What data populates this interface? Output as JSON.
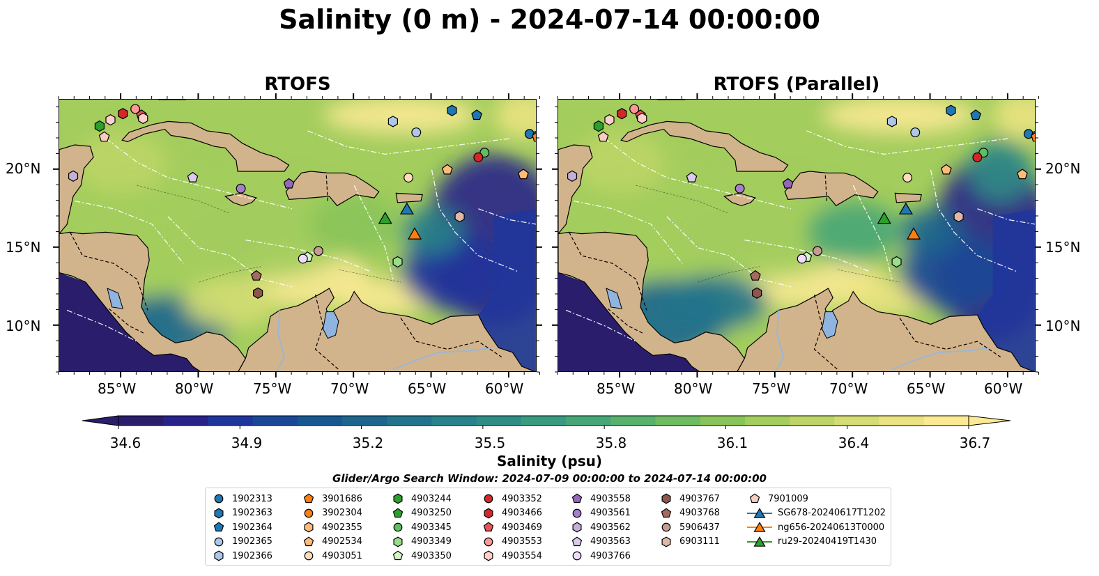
{
  "figure": {
    "suptitle": "Salinity (0 m) - 2024-07-14 00:00:00"
  },
  "panels": [
    {
      "title": "RTOFS"
    },
    {
      "title": "RTOFS (Parallel)"
    }
  ],
  "axes": {
    "lat_labels": [
      "20°N",
      "15°N",
      "10°N"
    ],
    "lon_labels": [
      "85°W",
      "80°W",
      "75°W",
      "70°W",
      "65°W",
      "60°W"
    ],
    "lon_range": [
      -89,
      -58.2
    ],
    "lat_range": [
      7,
      24.5
    ]
  },
  "colorbar": {
    "label": "Salinity (psu)",
    "ticks": [
      "34.6",
      "34.9",
      "35.2",
      "35.5",
      "35.8",
      "36.1",
      "36.4",
      "36.7"
    ],
    "range": [
      34.6,
      36.7
    ],
    "extend": "both",
    "colormap": "haline",
    "colors": [
      "#2a1d6b",
      "#28238a",
      "#20359b",
      "#1a4896",
      "#185891",
      "#1c668e",
      "#22738c",
      "#298189",
      "#308d86",
      "#3a9a80",
      "#47a677",
      "#58b16c",
      "#6fbb61",
      "#89c45a",
      "#a3cd5d",
      "#bdd566",
      "#d4dd73",
      "#ebe382",
      "#fbe994"
    ]
  },
  "search_window": "Glider/Argo Search Window: 2024-07-09 00:00:00 to 2024-07-14 00:00:00",
  "land_color": "#d2b48c",
  "lake_color": "#8fb4e0",
  "legend": {
    "columns": [
      [
        {
          "label": "1902313",
          "marker": "circle",
          "color": "#1f77b4"
        },
        {
          "label": "1902363",
          "marker": "hexagon",
          "color": "#1f77b4"
        },
        {
          "label": "1902364",
          "marker": "pentagon",
          "color": "#1f77b4"
        },
        {
          "label": "1902365",
          "marker": "circle",
          "color": "#aec7e8"
        },
        {
          "label": "1902366",
          "marker": "hexagon",
          "color": "#aec7e8"
        }
      ],
      [
        {
          "label": "3901686",
          "marker": "pentagon",
          "color": "#ff7f0e"
        },
        {
          "label": "3902304",
          "marker": "circle",
          "color": "#ff7f0e"
        },
        {
          "label": "4902355",
          "marker": "hexagon",
          "color": "#ffbb78"
        },
        {
          "label": "4902534",
          "marker": "pentagon",
          "color": "#ffbb78"
        },
        {
          "label": "4903051",
          "marker": "circle",
          "color": "#ffdcbb"
        }
      ],
      [
        {
          "label": "4903244",
          "marker": "hexagon",
          "color": "#2ca02c"
        },
        {
          "label": "4903250",
          "marker": "pentagon",
          "color": "#2ca02c"
        },
        {
          "label": "4903345",
          "marker": "circle",
          "color": "#5fbf5f"
        },
        {
          "label": "4903349",
          "marker": "hexagon",
          "color": "#98df8a"
        },
        {
          "label": "4903350",
          "marker": "pentagon",
          "color": "#d4f5cc"
        }
      ],
      [
        {
          "label": "4903352",
          "marker": "circle",
          "color": "#d62728"
        },
        {
          "label": "4903466",
          "marker": "hexagon",
          "color": "#d62728"
        },
        {
          "label": "4903469",
          "marker": "pentagon",
          "color": "#e8545a"
        },
        {
          "label": "4903553",
          "marker": "circle",
          "color": "#ff9896"
        },
        {
          "label": "4903554",
          "marker": "hexagon",
          "color": "#ffcfcc"
        }
      ],
      [
        {
          "label": "4903558",
          "marker": "pentagon",
          "color": "#9467bd"
        },
        {
          "label": "4903561",
          "marker": "circle",
          "color": "#a57fc9"
        },
        {
          "label": "4903562",
          "marker": "hexagon",
          "color": "#c5b0d5"
        },
        {
          "label": "4903563",
          "marker": "pentagon",
          "color": "#ddc9ec"
        },
        {
          "label": "4903766",
          "marker": "circle",
          "color": "#f0dcff"
        }
      ],
      [
        {
          "label": "4903767",
          "marker": "hexagon",
          "color": "#8c564b"
        },
        {
          "label": "4903768",
          "marker": "pentagon",
          "color": "#a36a5d"
        },
        {
          "label": "5906437",
          "marker": "circle",
          "color": "#c49c94"
        },
        {
          "label": "6903111",
          "marker": "hexagon",
          "color": "#e0b8a8"
        }
      ],
      [
        {
          "label": "7901009",
          "marker": "pentagon",
          "color": "#f7cdbf"
        },
        {
          "label": "SG678-20240617T1202",
          "marker": "triangle",
          "color": "#1f77b4"
        },
        {
          "label": "ng656-20240613T0000",
          "marker": "triangle",
          "color": "#ff7f0e"
        },
        {
          "label": "ru29-20240419T1430",
          "marker": "triangle",
          "color": "#2ca02c"
        }
      ]
    ]
  },
  "markers": [
    {
      "id": "1902313",
      "lon": -58.7,
      "lat": 22.3
    },
    {
      "id": "1902313",
      "lon": -58.2,
      "lat": 22.2
    },
    {
      "id": "1902363",
      "lon": -63.7,
      "lat": 23.8
    },
    {
      "id": "1902364",
      "lon": -62.1,
      "lat": 23.5
    },
    {
      "id": "1902365",
      "lon": -66.0,
      "lat": 22.4
    },
    {
      "id": "1902366",
      "lon": -67.5,
      "lat": 23.1
    },
    {
      "id": "3901686",
      "lon": -58.2,
      "lat": 22.1
    },
    {
      "id": "4902534",
      "lon": -64.0,
      "lat": 20.0
    },
    {
      "id": "4902534",
      "lon": -59.1,
      "lat": 19.7
    },
    {
      "id": "4903051",
      "lon": -66.5,
      "lat": 19.5
    },
    {
      "id": "4903244",
      "lon": -86.4,
      "lat": 22.8
    },
    {
      "id": "4903345",
      "lon": -61.6,
      "lat": 21.1
    },
    {
      "id": "4903349",
      "lon": -67.2,
      "lat": 14.1
    },
    {
      "id": "4903350",
      "lon": -73.0,
      "lat": 14.4
    },
    {
      "id": "4903352",
      "lon": -62.0,
      "lat": 20.8
    },
    {
      "id": "4903466",
      "lon": -84.9,
      "lat": 23.6
    },
    {
      "id": "4903469",
      "lon": -83.7,
      "lat": 23.5
    },
    {
      "id": "4903553",
      "lon": -84.1,
      "lat": 23.9
    },
    {
      "id": "4903554",
      "lon": -85.7,
      "lat": 23.2
    },
    {
      "id": "4903554",
      "lon": -83.6,
      "lat": 23.3
    },
    {
      "id": "4903558",
      "lon": -74.2,
      "lat": 19.1
    },
    {
      "id": "4903561",
      "lon": -77.3,
      "lat": 18.8
    },
    {
      "id": "4903562",
      "lon": -88.1,
      "lat": 19.6
    },
    {
      "id": "4903563",
      "lon": -80.4,
      "lat": 19.5
    },
    {
      "id": "4903766",
      "lon": -73.3,
      "lat": 14.3
    },
    {
      "id": "4903767",
      "lon": -76.2,
      "lat": 12.1
    },
    {
      "id": "4903768",
      "lon": -76.3,
      "lat": 13.2
    },
    {
      "id": "5906437",
      "lon": -72.3,
      "lat": 14.8
    },
    {
      "id": "6903111",
      "lon": -63.2,
      "lat": 17.0
    },
    {
      "id": "7901009",
      "lon": -86.1,
      "lat": 22.1
    }
  ],
  "glider_tracks": [
    {
      "id": "SG678-20240617T1202",
      "lon": -66.6,
      "lat": 17.5
    },
    {
      "id": "ng656-20240613T0000",
      "lon": -66.1,
      "lat": 15.9
    },
    {
      "id": "ru29-20240419T1430",
      "lon": -68.0,
      "lat": 16.9
    }
  ]
}
